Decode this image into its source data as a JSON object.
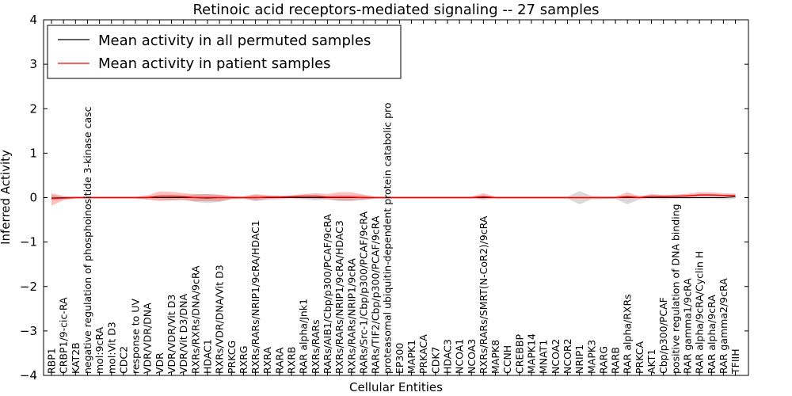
{
  "chart_data": {
    "type": "line",
    "title": "Retinoic acid receptors-mediated signaling -- 27 samples",
    "xlabel": "Cellular Entities",
    "ylabel": "Inferred Activity",
    "ylim": [
      -4,
      4
    ],
    "yticks": [
      "4",
      "3",
      "2",
      "1",
      "0",
      "−1",
      "−2",
      "−3",
      "−4"
    ],
    "grid": false,
    "legend_position": "top-left",
    "categories": [
      "RBP1",
      "CRBP1/9-cic-RA",
      "KAT2B",
      "negative regulation of phosphoinositide 3-kinase casc",
      "mol:9cRA",
      "mol:Vit D3",
      "CDC2",
      "response to UV",
      "VDR/VDR/DNA",
      "VDR",
      "VDR/VDR/Vit D3",
      "VDR/Vit D3/DNA",
      "RXRs/RXRs/DNA/9cRA",
      "HDAC1",
      "RXRs/VDR/DNA/Vit D3",
      "PRKCG",
      "RXRG",
      "RXRs/RARs/NRIP1/9cRA/HDAC1",
      "RXRA",
      "RARA",
      "RXRB",
      "RAR alpha/Jnk1",
      "RXRs/RARs",
      "RARs/AIB1/Cbp/p300/PCAF/9cRA",
      "RXRs/RARs/NRIP1/9cRA/HDAC3",
      "RXRs/RARs/NRIP1/9cRA",
      "RARs/Src-1/Cbp/p300/PCAF/9cRA",
      "RARs/TIF2/Cbp/p300/PCAF/9cRA",
      "proteasomal ubiquitin-dependent protein catabolic pro",
      "EP300",
      "MAPK1",
      "PRKACA",
      "CDK7",
      "HDAC3",
      "NCOA1",
      "NCOA3",
      "RXRs/RARs/SMRT(N-CoR2)/9cRA",
      "MAPK8",
      "CCNH",
      "CREBBP",
      "MAPK14",
      "MNAT1",
      "NCOA2",
      "NCOR2",
      "NRIP1",
      "MAPK3",
      "RARG",
      "RARB",
      "RAR alpha/RXRs",
      "PRKCA",
      "AKT1",
      "Cbp/p300/PCAF",
      "positive regulation of DNA binding",
      "RAR gamma1/9cRA",
      "RAR alpha/9cRA/Cyclin H",
      "RAR alpha/9cRA",
      "RAR gamma2/9cRA",
      "TFIIH"
    ],
    "series": [
      {
        "name": "Mean activity in all permuted samples",
        "color": "#000000",
        "values": [
          -0.01,
          0.0,
          0.0,
          0.0,
          0.0,
          0.0,
          0.0,
          0.0,
          0.0,
          0.0,
          0.0,
          0.0,
          0.0,
          -0.01,
          0.0,
          0.0,
          0.0,
          0.0,
          0.0,
          0.0,
          0.0,
          0.0,
          0.0,
          0.0,
          0.0,
          0.0,
          0.0,
          0.0,
          0.0,
          0.0,
          0.0,
          0.0,
          0.0,
          0.0,
          0.0,
          0.0,
          0.0,
          0.0,
          0.0,
          0.0,
          0.0,
          0.0,
          0.0,
          0.0,
          0.0,
          0.0,
          0.0,
          0.0,
          0.0,
          0.0,
          0.0,
          0.0,
          0.0,
          0.0,
          0.0,
          0.0,
          0.0,
          0.02
        ],
        "band_lower": [
          -0.06,
          -0.03,
          -0.02,
          -0.02,
          -0.02,
          -0.02,
          -0.02,
          -0.02,
          -0.04,
          -0.04,
          -0.06,
          -0.04,
          -0.1,
          -0.12,
          -0.1,
          -0.04,
          -0.03,
          -0.08,
          -0.05,
          -0.04,
          -0.03,
          -0.04,
          -0.06,
          -0.04,
          -0.08,
          -0.08,
          -0.06,
          -0.02,
          -0.02,
          -0.02,
          -0.02,
          -0.02,
          -0.02,
          -0.02,
          -0.02,
          -0.02,
          -0.05,
          -0.02,
          -0.02,
          -0.02,
          -0.02,
          -0.02,
          -0.02,
          -0.02,
          -0.15,
          -0.04,
          -0.03,
          -0.03,
          -0.15,
          -0.04,
          -0.03,
          -0.04,
          -0.03,
          -0.03,
          -0.03,
          -0.03,
          -0.04,
          -0.03
        ],
        "band_upper": [
          0.06,
          0.03,
          0.02,
          0.02,
          0.02,
          0.02,
          0.02,
          0.02,
          0.04,
          0.04,
          0.06,
          0.04,
          0.07,
          0.08,
          0.07,
          0.04,
          0.03,
          0.06,
          0.05,
          0.04,
          0.03,
          0.04,
          0.05,
          0.04,
          0.06,
          0.06,
          0.05,
          0.02,
          0.02,
          0.02,
          0.02,
          0.02,
          0.02,
          0.02,
          0.02,
          0.02,
          0.04,
          0.02,
          0.02,
          0.02,
          0.02,
          0.02,
          0.02,
          0.02,
          0.15,
          0.04,
          0.03,
          0.03,
          0.05,
          0.04,
          0.03,
          0.04,
          0.03,
          0.03,
          0.03,
          0.03,
          0.04,
          0.03
        ]
      },
      {
        "name": "Mean activity in patient samples",
        "color": "#ff0000",
        "values": [
          -0.02,
          -0.01,
          0.0,
          0.0,
          0.0,
          0.0,
          0.0,
          0.0,
          0.0,
          0.03,
          0.03,
          0.02,
          0.0,
          0.0,
          0.0,
          0.0,
          0.0,
          0.0,
          0.01,
          0.01,
          0.02,
          0.03,
          0.03,
          0.01,
          0.01,
          0.01,
          0.0,
          0.0,
          0.0,
          0.0,
          0.0,
          0.0,
          0.0,
          0.0,
          0.0,
          0.0,
          0.02,
          0.0,
          0.0,
          0.0,
          0.0,
          0.0,
          0.0,
          0.0,
          0.0,
          0.0,
          0.0,
          0.0,
          0.02,
          0.0,
          0.03,
          0.02,
          0.03,
          0.04,
          0.06,
          0.06,
          0.05,
          0.05
        ],
        "band_lower": [
          -0.18,
          -0.06,
          -0.02,
          -0.02,
          -0.02,
          -0.02,
          -0.02,
          -0.02,
          -0.04,
          -0.08,
          -0.06,
          -0.06,
          -0.08,
          -0.08,
          -0.08,
          -0.03,
          -0.02,
          -0.06,
          -0.03,
          -0.02,
          -0.01,
          -0.02,
          -0.02,
          -0.04,
          -0.06,
          -0.06,
          -0.04,
          -0.02,
          -0.02,
          -0.02,
          -0.02,
          -0.02,
          -0.02,
          -0.02,
          -0.02,
          -0.02,
          -0.03,
          -0.02,
          -0.02,
          -0.02,
          -0.02,
          -0.02,
          -0.02,
          -0.02,
          -0.02,
          -0.02,
          -0.02,
          -0.02,
          -0.02,
          -0.02,
          0.0,
          -0.01,
          0.0,
          0.01,
          0.02,
          0.02,
          0.02,
          0.02
        ],
        "band_upper": [
          0.1,
          0.03,
          0.02,
          0.02,
          0.02,
          0.02,
          0.02,
          0.02,
          0.05,
          0.14,
          0.13,
          0.1,
          0.08,
          0.08,
          0.06,
          0.03,
          0.02,
          0.08,
          0.05,
          0.04,
          0.05,
          0.08,
          0.1,
          0.08,
          0.12,
          0.12,
          0.07,
          0.02,
          0.02,
          0.02,
          0.02,
          0.02,
          0.02,
          0.02,
          0.02,
          0.02,
          0.1,
          0.02,
          0.02,
          0.02,
          0.02,
          0.02,
          0.02,
          0.02,
          0.02,
          0.02,
          0.02,
          0.02,
          0.12,
          0.03,
          0.08,
          0.06,
          0.07,
          0.09,
          0.12,
          0.12,
          0.1,
          0.09
        ]
      }
    ]
  }
}
